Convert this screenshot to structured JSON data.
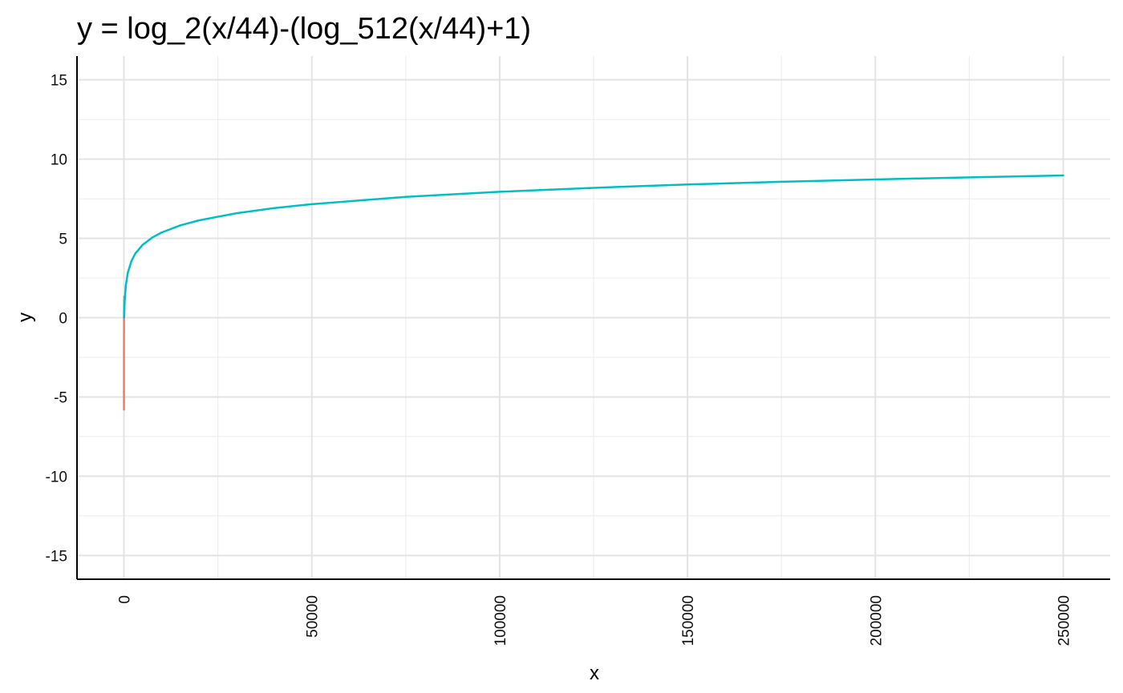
{
  "chart_data": {
    "type": "line",
    "title": "y = log_2(x/44)-(log_512(x/44)+1)",
    "xlabel": "x",
    "ylabel": "y",
    "xlim": [
      -12500,
      262500
    ],
    "ylim": [
      -16.5,
      16.5
    ],
    "x_ticks": [
      0,
      50000,
      100000,
      150000,
      200000,
      250000
    ],
    "x_tick_labels": [
      "0",
      "50000",
      "100000",
      "150000",
      "200000",
      "250000"
    ],
    "y_ticks": [
      15,
      10,
      5,
      0,
      -5,
      -10,
      -15
    ],
    "y_tick_labels": [
      "15",
      "10",
      "5",
      "0",
      "-5",
      "-10",
      "-15"
    ],
    "grid": true,
    "legend": false,
    "series": [
      {
        "color": "#F8766D",
        "x": [
          0.1,
          0.5,
          2,
          5,
          10,
          15,
          20,
          25,
          30,
          35,
          40,
          44
        ],
        "y": [
          -5.8,
          -3.8,
          -2.1,
          -0.9,
          -0.08,
          0.31,
          0.55,
          0.76,
          0.93,
          1.06,
          1.2,
          1.33
        ]
      },
      {
        "color": "#00BFC4",
        "x": [
          44,
          100,
          200,
          500,
          1000,
          2000,
          3000,
          5000,
          7500,
          10000,
          15000,
          20000,
          30000,
          40000,
          50000,
          75000,
          100000,
          125000,
          150000,
          175000,
          200000,
          225000,
          250000
        ],
        "y": [
          0.0,
          0.36,
          1.07,
          2.04,
          2.81,
          3.58,
          4.04,
          4.6,
          5.05,
          5.37,
          5.82,
          6.14,
          6.59,
          6.91,
          7.16,
          7.62,
          7.94,
          8.19,
          8.4,
          8.57,
          8.72,
          8.85,
          8.97
        ]
      }
    ]
  }
}
